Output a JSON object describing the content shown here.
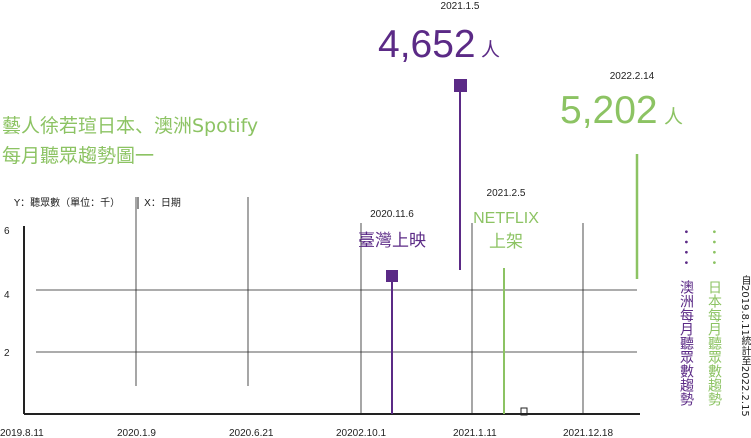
{
  "chart_data": {
    "type": "line",
    "title_line1": "藝人徐若瑄日本、澳洲Spotify",
    "title_line2": "每月聽眾趨勢圖一",
    "ylabel": "Y：聽眾數（單位：千）",
    "xlabel": "X：日期",
    "ylim": [
      0,
      6.5
    ],
    "yticks": [
      {
        "label": "2",
        "value": 2
      },
      {
        "label": "4",
        "value": 4
      },
      {
        "label": "6",
        "value": 6
      }
    ],
    "xticks": [
      "2019.8.11",
      "2020.1.9",
      "2020.6.21",
      "20202.10.1",
      "2021.1.11",
      "2021.12.18"
    ],
    "grid": true,
    "date_range_note": "自2019.8.11統計至2022.2.15",
    "colors": {
      "australia": "#5b2a86",
      "japan": "#8cc363",
      "axis": "#222222"
    },
    "series": [
      {
        "name": "澳洲每月聽眾數趨勢",
        "color": "#5b2a86"
      },
      {
        "name": "日本每月聽眾數趨勢",
        "color": "#8cc363"
      }
    ],
    "annotations": {
      "taiwan_release": {
        "date": "2020.11.6",
        "text": "臺灣上映",
        "color": "#5b2a86"
      },
      "netflix": {
        "date": "2021.2.5",
        "line1": "NETFLIX",
        "line2": "上架",
        "color": "#8cc363"
      },
      "peak_au": {
        "date": "2021.1.5",
        "value_text": "4,652",
        "unit": "人",
        "value": 4652,
        "color": "#5b2a86"
      },
      "peak_jp": {
        "date": "2022.2.14",
        "value_text": "5,202",
        "unit": "人",
        "value": 5202,
        "color": "#8cc363"
      }
    }
  }
}
